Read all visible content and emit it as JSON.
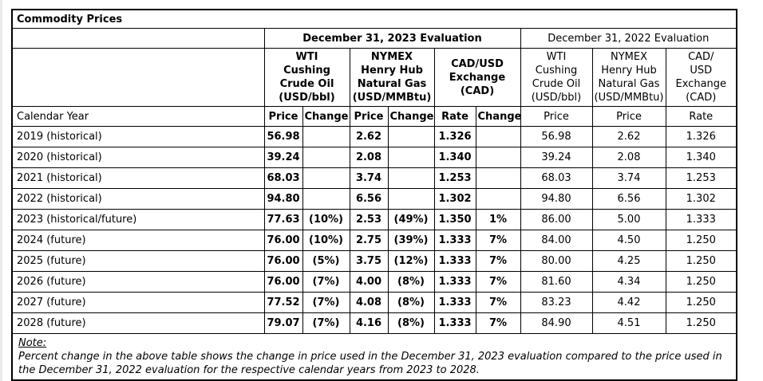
{
  "table": {
    "title": "Commodity Prices",
    "calendar_year_label": "Calendar Year",
    "eval2023": {
      "header": "December 31, 2023 Evaluation",
      "groups": [
        "WTI\nCushing\nCrude Oil\n(USD/bbl)",
        "NYMEX\nHenry Hub\nNatural Gas\n(USD/MMBtu)",
        "CAD/USD\nExchange\n(CAD)"
      ],
      "columns": [
        "Price",
        "Change",
        "Price",
        "Change",
        "Rate",
        "Change"
      ]
    },
    "eval2022": {
      "header": "December 31, 2022 Evaluation",
      "groups": [
        "WTI\nCushing\nCrude Oil\n(USD/bbl)",
        "NYMEX\nHenry Hub\nNatural Gas\n(USD/MMBtu)",
        "CAD/\nUSD\nExchange\n(CAD)"
      ],
      "columns": [
        "Price",
        "Price",
        "Rate"
      ]
    },
    "rows": [
      [
        "2019 (historical)",
        "56.98",
        "",
        "2.62",
        "",
        "1.326",
        "",
        "56.98",
        "2.62",
        "1.326"
      ],
      [
        "2020 (historical)",
        "39.24",
        "",
        "2.08",
        "",
        "1.340",
        "",
        "39.24",
        "2.08",
        "1.340"
      ],
      [
        "2021 (historical)",
        "68.03",
        "",
        "3.74",
        "",
        "1.253",
        "",
        "68.03",
        "3.74",
        "1.253"
      ],
      [
        "2022 (historical)",
        "94.80",
        "",
        "6.56",
        "",
        "1.302",
        "",
        "94.80",
        "6.56",
        "1.302"
      ],
      [
        "2023 (historical/future)",
        "77.63",
        "(10%)",
        "2.53",
        "(49%)",
        "1.350",
        "1%",
        "86.00",
        "5.00",
        "1.333"
      ],
      [
        "2024 (future)",
        "76.00",
        "(10%)",
        "2.75",
        "(39%)",
        "1.333",
        "7%",
        "84.00",
        "4.50",
        "1.250"
      ],
      [
        "2025 (future)",
        "76.00",
        "(5%)",
        "3.75",
        "(12%)",
        "1.333",
        "7%",
        "80.00",
        "4.25",
        "1.250"
      ],
      [
        "2026 (future)",
        "76.00",
        "(7%)",
        "4.00",
        "(8%)",
        "1.333",
        "7%",
        "81.60",
        "4.34",
        "1.250"
      ],
      [
        "2027 (future)",
        "77.52",
        "(7%)",
        "4.08",
        "(8%)",
        "1.333",
        "7%",
        "83.23",
        "4.42",
        "1.250"
      ],
      [
        "2028 (future)",
        "79.07",
        "(7%)",
        "4.16",
        "(8%)",
        "1.333",
        "7%",
        "84.90",
        "4.51",
        "1.250"
      ]
    ],
    "note": {
      "label": "Note:",
      "text": "Percent change in the above table shows the change in price used in the December 31, 2023 evaluation compared to the price used in the December 31, 2022 evaluation for the respective calendar years from 2023 to 2028."
    }
  }
}
